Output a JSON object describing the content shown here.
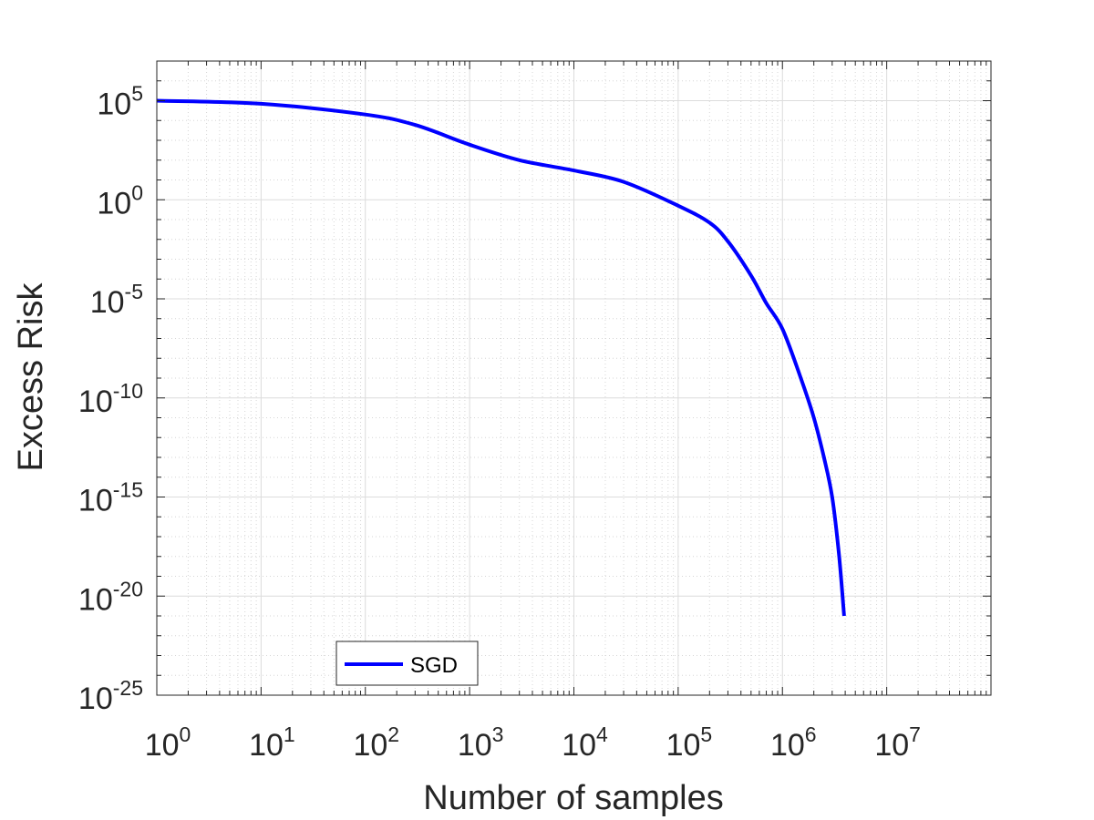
{
  "chart_data": {
    "type": "line",
    "xlabel": "Number of samples",
    "ylabel": "Excess Risk",
    "x_scale": "log",
    "y_scale": "log",
    "xlim": [
      1,
      100000000
    ],
    "ylim": [
      1e-25,
      10000000.0
    ],
    "x_ticks": [
      {
        "base": "10",
        "exp": "0"
      },
      {
        "base": "10",
        "exp": "1"
      },
      {
        "base": "10",
        "exp": "2"
      },
      {
        "base": "10",
        "exp": "3"
      },
      {
        "base": "10",
        "exp": "4"
      },
      {
        "base": "10",
        "exp": "5"
      },
      {
        "base": "10",
        "exp": "6"
      },
      {
        "base": "10",
        "exp": "7"
      }
    ],
    "y_ticks": [
      {
        "base": "10",
        "exp": "5"
      },
      {
        "base": "10",
        "exp": "0"
      },
      {
        "base": "10",
        "exp": "-5"
      },
      {
        "base": "10",
        "exp": "-10"
      },
      {
        "base": "10",
        "exp": "-15"
      },
      {
        "base": "10",
        "exp": "-20"
      },
      {
        "base": "10",
        "exp": "-25"
      }
    ],
    "grid": true,
    "legend_position": "bottom-left",
    "series": [
      {
        "name": "SGD",
        "color": "#0000ff",
        "x": [
          1,
          10,
          100,
          300,
          1000,
          3000,
          10000,
          30000,
          100000,
          200000,
          300000,
          500000,
          700000,
          1000000,
          1500000,
          2000000,
          2500000,
          3000000,
          3500000,
          3900000
        ],
        "y": [
          100000,
          70000,
          20000,
          6000,
          600,
          100,
          30,
          8,
          0.5,
          0.07,
          0.008,
          0.00015,
          6e-06,
          3e-07,
          1e-09,
          1e-11,
          1e-13,
          1e-15,
          1e-18,
          1e-21
        ]
      }
    ]
  }
}
